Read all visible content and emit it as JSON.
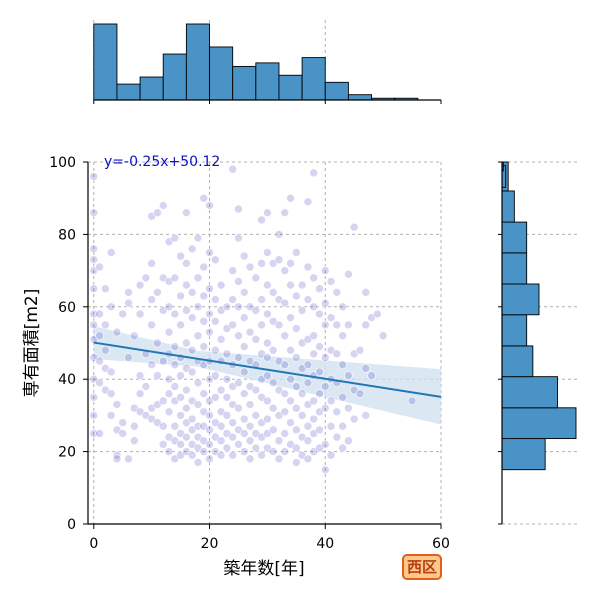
{
  "chart_data": {
    "type": "scatter",
    "title": "",
    "xlabel": "築年数[年]",
    "ylabel": "専有面積[m2]",
    "xlim": [
      -1,
      60
    ],
    "ylim": [
      0,
      100
    ],
    "xticks": [
      0,
      20,
      40,
      60
    ],
    "yticks": [
      0,
      20,
      40,
      60,
      80,
      100
    ],
    "grid": true,
    "regression": {
      "label": "y=-0.25x+50.12",
      "slope": -0.25,
      "intercept": 50.12,
      "line_color": "#1f77b4",
      "band_color": "#cfe0ef"
    },
    "point_color": "#3f3fc2",
    "points": [
      [
        0,
        96
      ],
      [
        0,
        86
      ],
      [
        0,
        76
      ],
      [
        0,
        73
      ],
      [
        0,
        70
      ],
      [
        0,
        65
      ],
      [
        0,
        58
      ],
      [
        0,
        55
      ],
      [
        0,
        51
      ],
      [
        0,
        46
      ],
      [
        0,
        40
      ],
      [
        0,
        35
      ],
      [
        0,
        30
      ],
      [
        0,
        25
      ],
      [
        1,
        71
      ],
      [
        1,
        58
      ],
      [
        1,
        52
      ],
      [
        1,
        45
      ],
      [
        1,
        39
      ],
      [
        1,
        25
      ],
      [
        2,
        65
      ],
      [
        2,
        55
      ],
      [
        2,
        48
      ],
      [
        2,
        43
      ],
      [
        2,
        37
      ],
      [
        3,
        75
      ],
      [
        3,
        60
      ],
      [
        3,
        42
      ],
      [
        3,
        36
      ],
      [
        3,
        30
      ],
      [
        4,
        53
      ],
      [
        4,
        33
      ],
      [
        4,
        26
      ],
      [
        4,
        19
      ],
      [
        4,
        18
      ],
      [
        5,
        58
      ],
      [
        5,
        28
      ],
      [
        5,
        25
      ],
      [
        6,
        64
      ],
      [
        6,
        61
      ],
      [
        6,
        46
      ],
      [
        6,
        18
      ],
      [
        7,
        52
      ],
      [
        7,
        32
      ],
      [
        7,
        27
      ],
      [
        7,
        23
      ],
      [
        8,
        66
      ],
      [
        8,
        58
      ],
      [
        8,
        41
      ],
      [
        8,
        36
      ],
      [
        8,
        31
      ],
      [
        9,
        68
      ],
      [
        9,
        47
      ],
      [
        9,
        38
      ],
      [
        9,
        30
      ],
      [
        10,
        85
      ],
      [
        10,
        72
      ],
      [
        10,
        62
      ],
      [
        10,
        55
      ],
      [
        10,
        44
      ],
      [
        10,
        32
      ],
      [
        10,
        29
      ],
      [
        11,
        86
      ],
      [
        11,
        64
      ],
      [
        11,
        50
      ],
      [
        11,
        41
      ],
      [
        11,
        33
      ],
      [
        11,
        28
      ],
      [
        12,
        88
      ],
      [
        12,
        68
      ],
      [
        12,
        59
      ],
      [
        12,
        45
      ],
      [
        12,
        34
      ],
      [
        12,
        27
      ],
      [
        12,
        22
      ],
      [
        13,
        78
      ],
      [
        13,
        67
      ],
      [
        13,
        60
      ],
      [
        13,
        53
      ],
      [
        13,
        47
      ],
      [
        13,
        40
      ],
      [
        13,
        36
      ],
      [
        13,
        31
      ],
      [
        13,
        24
      ],
      [
        13,
        20
      ],
      [
        14,
        79
      ],
      [
        14,
        68
      ],
      [
        14,
        58
      ],
      [
        14,
        49
      ],
      [
        14,
        44
      ],
      [
        14,
        38
      ],
      [
        14,
        34
      ],
      [
        14,
        27
      ],
      [
        14,
        23
      ],
      [
        14,
        18
      ],
      [
        15,
        74
      ],
      [
        15,
        63
      ],
      [
        15,
        55
      ],
      [
        15,
        46
      ],
      [
        15,
        41
      ],
      [
        15,
        35
      ],
      [
        15,
        30
      ],
      [
        15,
        25
      ],
      [
        15,
        22
      ],
      [
        15,
        19
      ],
      [
        16,
        86
      ],
      [
        16,
        72
      ],
      [
        16,
        66
      ],
      [
        16,
        59
      ],
      [
        16,
        50
      ],
      [
        16,
        43
      ],
      [
        16,
        37
      ],
      [
        16,
        32
      ],
      [
        16,
        28
      ],
      [
        16,
        24
      ],
      [
        16,
        20
      ],
      [
        17,
        76
      ],
      [
        17,
        64
      ],
      [
        17,
        57
      ],
      [
        17,
        48
      ],
      [
        17,
        42
      ],
      [
        17,
        34
      ],
      [
        17,
        29
      ],
      [
        17,
        26
      ],
      [
        17,
        22
      ],
      [
        17,
        19
      ],
      [
        18,
        79
      ],
      [
        18,
        68
      ],
      [
        18,
        60
      ],
      [
        18,
        52
      ],
      [
        18,
        45
      ],
      [
        18,
        39
      ],
      [
        18,
        33
      ],
      [
        18,
        27
      ],
      [
        18,
        24
      ],
      [
        18,
        21
      ],
      [
        18,
        17
      ],
      [
        19,
        90
      ],
      [
        19,
        71
      ],
      [
        19,
        63
      ],
      [
        19,
        56
      ],
      [
        19,
        49
      ],
      [
        19,
        44
      ],
      [
        19,
        36
      ],
      [
        19,
        31
      ],
      [
        19,
        27
      ],
      [
        19,
        23
      ],
      [
        19,
        20
      ],
      [
        20,
        88
      ],
      [
        20,
        75
      ],
      [
        20,
        65
      ],
      [
        20,
        58
      ],
      [
        20,
        53
      ],
      [
        20,
        45
      ],
      [
        20,
        40
      ],
      [
        20,
        34
      ],
      [
        20,
        30
      ],
      [
        20,
        26
      ],
      [
        20,
        22
      ],
      [
        20,
        18
      ],
      [
        21,
        73
      ],
      [
        21,
        62
      ],
      [
        21,
        56
      ],
      [
        21,
        48
      ],
      [
        21,
        41
      ],
      [
        21,
        35
      ],
      [
        21,
        28
      ],
      [
        21,
        24
      ],
      [
        21,
        20
      ],
      [
        22,
        66
      ],
      [
        22,
        59
      ],
      [
        22,
        51
      ],
      [
        22,
        45
      ],
      [
        22,
        37
      ],
      [
        22,
        31
      ],
      [
        22,
        27
      ],
      [
        22,
        23
      ],
      [
        22,
        19
      ],
      [
        23,
        60
      ],
      [
        23,
        54
      ],
      [
        23,
        47
      ],
      [
        23,
        40
      ],
      [
        23,
        35
      ],
      [
        23,
        30
      ],
      [
        23,
        25
      ],
      [
        23,
        21
      ],
      [
        24,
        98
      ],
      [
        24,
        70
      ],
      [
        24,
        62
      ],
      [
        24,
        55
      ],
      [
        24,
        44
      ],
      [
        24,
        38
      ],
      [
        24,
        33
      ],
      [
        24,
        28
      ],
      [
        24,
        24
      ],
      [
        24,
        19
      ],
      [
        25,
        87
      ],
      [
        25,
        79
      ],
      [
        25,
        67
      ],
      [
        25,
        60
      ],
      [
        25,
        52
      ],
      [
        25,
        46
      ],
      [
        25,
        39
      ],
      [
        25,
        32
      ],
      [
        25,
        26
      ],
      [
        25,
        22
      ],
      [
        26,
        74
      ],
      [
        26,
        64
      ],
      [
        26,
        57
      ],
      [
        26,
        49
      ],
      [
        26,
        42
      ],
      [
        26,
        36
      ],
      [
        26,
        29
      ],
      [
        26,
        25
      ],
      [
        26,
        20
      ],
      [
        27,
        71
      ],
      [
        27,
        60
      ],
      [
        27,
        53
      ],
      [
        27,
        45
      ],
      [
        27,
        38
      ],
      [
        27,
        33
      ],
      [
        27,
        27
      ],
      [
        27,
        23
      ],
      [
        27,
        18
      ],
      [
        28,
        68
      ],
      [
        28,
        59
      ],
      [
        28,
        51
      ],
      [
        28,
        44
      ],
      [
        28,
        37
      ],
      [
        28,
        30
      ],
      [
        28,
        25
      ],
      [
        28,
        21
      ],
      [
        29,
        84
      ],
      [
        29,
        72
      ],
      [
        29,
        62
      ],
      [
        29,
        55
      ],
      [
        29,
        47
      ],
      [
        29,
        40
      ],
      [
        29,
        35
      ],
      [
        29,
        28
      ],
      [
        29,
        24
      ],
      [
        29,
        19
      ],
      [
        30,
        86
      ],
      [
        30,
        75
      ],
      [
        30,
        66
      ],
      [
        30,
        58
      ],
      [
        30,
        50
      ],
      [
        30,
        46
      ],
      [
        30,
        41
      ],
      [
        30,
        34
      ],
      [
        30,
        29
      ],
      [
        30,
        25
      ],
      [
        30,
        21
      ],
      [
        31,
        72
      ],
      [
        31,
        64
      ],
      [
        31,
        56
      ],
      [
        31,
        48
      ],
      [
        31,
        39
      ],
      [
        31,
        32
      ],
      [
        31,
        26
      ],
      [
        31,
        20
      ],
      [
        32,
        80
      ],
      [
        32,
        73
      ],
      [
        32,
        62
      ],
      [
        32,
        55
      ],
      [
        32,
        45
      ],
      [
        32,
        37
      ],
      [
        32,
        30
      ],
      [
        32,
        23
      ],
      [
        32,
        18
      ],
      [
        33,
        86
      ],
      [
        33,
        70
      ],
      [
        33,
        61
      ],
      [
        33,
        52
      ],
      [
        33,
        44
      ],
      [
        33,
        36
      ],
      [
        33,
        31
      ],
      [
        33,
        25
      ],
      [
        33,
        20
      ],
      [
        34,
        90
      ],
      [
        34,
        72
      ],
      [
        34,
        66
      ],
      [
        34,
        57
      ],
      [
        34,
        48
      ],
      [
        34,
        40
      ],
      [
        34,
        34
      ],
      [
        34,
        28
      ],
      [
        34,
        22
      ],
      [
        35,
        75
      ],
      [
        35,
        63
      ],
      [
        35,
        54
      ],
      [
        35,
        46
      ],
      [
        35,
        38
      ],
      [
        35,
        32
      ],
      [
        35,
        26
      ],
      [
        35,
        21
      ],
      [
        35,
        17
      ],
      [
        36,
        66
      ],
      [
        36,
        59
      ],
      [
        36,
        50
      ],
      [
        36,
        43
      ],
      [
        36,
        36
      ],
      [
        36,
        30
      ],
      [
        36,
        24
      ],
      [
        36,
        19
      ],
      [
        37,
        89
      ],
      [
        37,
        71
      ],
      [
        37,
        62
      ],
      [
        37,
        51
      ],
      [
        37,
        44
      ],
      [
        37,
        39
      ],
      [
        37,
        33
      ],
      [
        37,
        27
      ],
      [
        37,
        23
      ],
      [
        37,
        18
      ],
      [
        38,
        97
      ],
      [
        38,
        68
      ],
      [
        38,
        60
      ],
      [
        38,
        52
      ],
      [
        38,
        47
      ],
      [
        38,
        41
      ],
      [
        38,
        34
      ],
      [
        38,
        29
      ],
      [
        38,
        25
      ],
      [
        38,
        20
      ],
      [
        39,
        65
      ],
      [
        39,
        58
      ],
      [
        39,
        49
      ],
      [
        39,
        42
      ],
      [
        39,
        36
      ],
      [
        39,
        31
      ],
      [
        39,
        26
      ],
      [
        39,
        21
      ],
      [
        40,
        70
      ],
      [
        40,
        61
      ],
      [
        40,
        55
      ],
      [
        40,
        46
      ],
      [
        40,
        38
      ],
      [
        40,
        32
      ],
      [
        40,
        22
      ],
      [
        40,
        15
      ],
      [
        41,
        67
      ],
      [
        41,
        57
      ],
      [
        41,
        48
      ],
      [
        41,
        40
      ],
      [
        41,
        34
      ],
      [
        41,
        27
      ],
      [
        41,
        19
      ],
      [
        42,
        64
      ],
      [
        42,
        55
      ],
      [
        42,
        47
      ],
      [
        42,
        39
      ],
      [
        42,
        31
      ],
      [
        42,
        24
      ],
      [
        43,
        60
      ],
      [
        43,
        52
      ],
      [
        43,
        44
      ],
      [
        43,
        35
      ],
      [
        43,
        27
      ],
      [
        43,
        21
      ],
      [
        44,
        69
      ],
      [
        44,
        55
      ],
      [
        44,
        41
      ],
      [
        44,
        32
      ],
      [
        44,
        23
      ],
      [
        45,
        82
      ],
      [
        45,
        47
      ],
      [
        45,
        37
      ],
      [
        45,
        29
      ],
      [
        46,
        48
      ],
      [
        46,
        36
      ],
      [
        47,
        64
      ],
      [
        47,
        55
      ],
      [
        47,
        43
      ],
      [
        47,
        30
      ],
      [
        48,
        57
      ],
      [
        48,
        41
      ],
      [
        49,
        58
      ],
      [
        50,
        52
      ],
      [
        55,
        34
      ]
    ],
    "top_histogram": {
      "xlim": [
        -1,
        60
      ],
      "bin_edges": [
        0,
        4,
        8,
        12,
        16,
        20,
        24,
        28,
        32,
        36,
        40,
        44,
        48,
        52,
        56,
        60
      ],
      "counts": [
        43,
        9,
        13,
        26,
        43,
        30,
        19,
        21,
        14,
        24,
        10,
        3,
        1,
        1,
        0
      ]
    },
    "right_histogram": {
      "ylim": [
        0,
        100
      ],
      "bin_edges": [
        15,
        23.6,
        32.1,
        40.7,
        49.2,
        57.8,
        66.3,
        74.9,
        83.4,
        92,
        100
      ],
      "counts": [
        7,
        12,
        9,
        5,
        4,
        6,
        4,
        4,
        2,
        1
      ],
      "extra_bins": [
        [
          93,
          99,
          0.6
        ],
        [
          97.5,
          100,
          0.2
        ]
      ]
    },
    "bar_fill": "#4a93c6"
  },
  "badge": {
    "label": "西区",
    "background": "#ffc98a",
    "border": "#e0601c",
    "text_color": "#b4401a"
  }
}
